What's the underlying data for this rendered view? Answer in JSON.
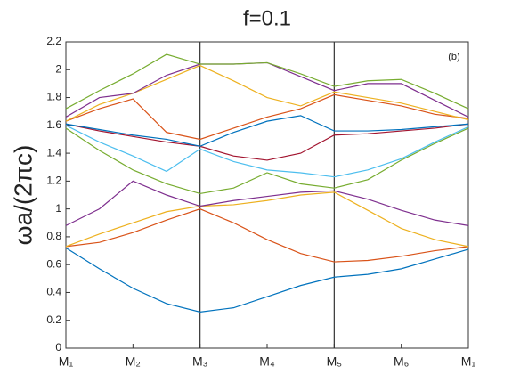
{
  "chart_data": {
    "type": "line",
    "title": "f=0.1",
    "y_label": "ωa/(2πc)",
    "annotation": "(b)",
    "x": [
      0,
      0.5,
      1,
      1.5,
      2,
      2.5,
      3,
      3.5,
      4,
      4.5,
      5,
      5.5,
      6
    ],
    "xlim": [
      0,
      6
    ],
    "xticks": [
      {
        "value": 0,
        "label": "M₁"
      },
      {
        "value": 1,
        "label": "M₂"
      },
      {
        "value": 2,
        "label": "M₃"
      },
      {
        "value": 3,
        "label": "M₄"
      },
      {
        "value": 4,
        "label": "M₅"
      },
      {
        "value": 5,
        "label": "M₆"
      },
      {
        "value": 6,
        "label": "M₁"
      }
    ],
    "vlines": [
      2,
      4
    ],
    "ylim": [
      0,
      2.2
    ],
    "yticks": [
      0,
      0.2,
      0.4,
      0.6,
      0.8,
      1,
      1.2,
      1.4,
      1.6,
      1.8,
      2,
      2.2
    ],
    "series": [
      {
        "color": "#0072BD",
        "values": [
          0.72,
          0.57,
          0.43,
          0.32,
          0.26,
          0.29,
          0.37,
          0.45,
          0.51,
          0.53,
          0.57,
          0.64,
          0.71
        ]
      },
      {
        "color": "#D95319",
        "values": [
          0.73,
          0.76,
          0.83,
          0.92,
          1.0,
          0.9,
          0.78,
          0.68,
          0.62,
          0.63,
          0.66,
          0.7,
          0.73
        ]
      },
      {
        "color": "#EDB120",
        "values": [
          0.73,
          0.82,
          0.9,
          0.98,
          1.02,
          1.03,
          1.06,
          1.1,
          1.12,
          0.99,
          0.86,
          0.78,
          0.73
        ]
      },
      {
        "color": "#7E2F8E",
        "values": [
          0.88,
          1.0,
          1.2,
          1.1,
          1.02,
          1.06,
          1.09,
          1.12,
          1.13,
          1.07,
          0.99,
          0.92,
          0.88
        ]
      },
      {
        "color": "#77AC30",
        "values": [
          1.58,
          1.42,
          1.28,
          1.18,
          1.11,
          1.15,
          1.26,
          1.18,
          1.15,
          1.21,
          1.35,
          1.47,
          1.58
        ]
      },
      {
        "color": "#4DBEEE",
        "values": [
          1.6,
          1.48,
          1.38,
          1.27,
          1.43,
          1.34,
          1.28,
          1.26,
          1.23,
          1.28,
          1.36,
          1.48,
          1.59
        ]
      },
      {
        "color": "#A2142F",
        "values": [
          1.61,
          1.56,
          1.52,
          1.48,
          1.45,
          1.38,
          1.35,
          1.4,
          1.53,
          1.54,
          1.56,
          1.58,
          1.61
        ]
      },
      {
        "color": "#0072BD",
        "values": [
          1.61,
          1.57,
          1.53,
          1.5,
          1.45,
          1.55,
          1.63,
          1.67,
          1.56,
          1.56,
          1.57,
          1.59,
          1.61
        ]
      },
      {
        "color": "#D95319",
        "values": [
          1.63,
          1.72,
          1.79,
          1.55,
          1.5,
          1.58,
          1.66,
          1.72,
          1.82,
          1.78,
          1.74,
          1.68,
          1.65
        ]
      },
      {
        "color": "#EDB120",
        "values": [
          1.63,
          1.75,
          1.83,
          1.93,
          2.03,
          1.92,
          1.8,
          1.74,
          1.84,
          1.8,
          1.76,
          1.7,
          1.64
        ]
      },
      {
        "color": "#7E2F8E",
        "values": [
          1.66,
          1.8,
          1.83,
          1.96,
          2.04,
          2.04,
          2.05,
          1.95,
          1.85,
          1.9,
          1.9,
          1.78,
          1.66
        ]
      },
      {
        "color": "#77AC30",
        "values": [
          1.72,
          1.85,
          1.97,
          2.11,
          2.04,
          2.04,
          2.05,
          1.97,
          1.88,
          1.92,
          1.93,
          1.83,
          1.72
        ]
      }
    ]
  }
}
